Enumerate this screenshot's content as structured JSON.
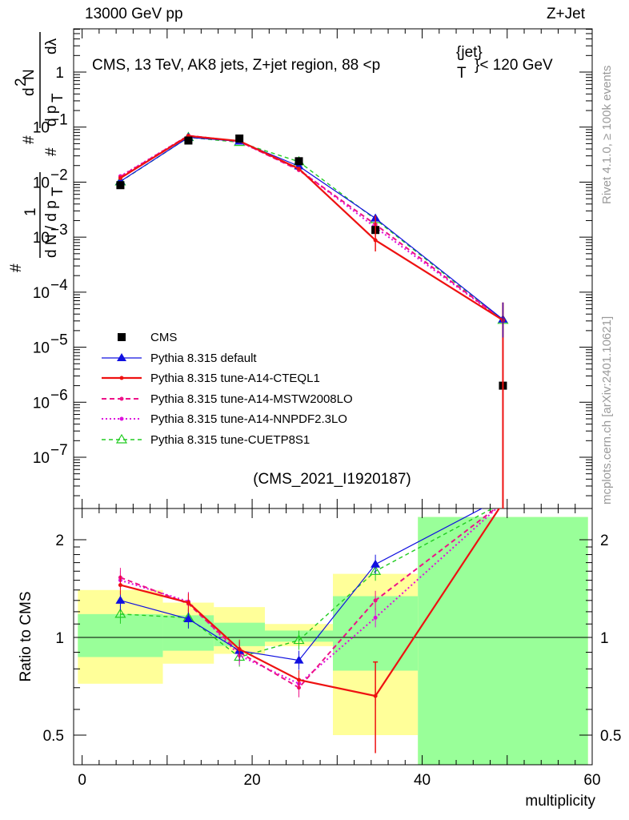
{
  "header": {
    "left": "13000 GeV pp",
    "right": "Z+Jet"
  },
  "side_labels": {
    "rivet": "Rivet 4.1.0, ≥ 100k events",
    "mcplots": "mcplots.cern.ch [arXiv:2401.10621]"
  },
  "plot_title": "CMS, 13 TeV, AK8 jets, Z+jet region, 88 <p",
  "plot_title_sup": "{jet}",
  "plot_title_sub": "T",
  "plot_title_tail": "}< 120 GeV",
  "analysis_id": "(CMS_2021_I1920187)",
  "y_axis_label": "1/dN/dpT # d²N / # dpT dλ",
  "ratio_ylabel": "Ratio to CMS",
  "x_axis_label": "multiplicity",
  "colors": {
    "data": "#000000",
    "default": "#1010e0",
    "cteql1": "#ee1111",
    "mstw": "#ee1188",
    "nnpdf": "#dd11dd",
    "cuetp8s1": "#22cc22",
    "band_yellow": "#ffff99",
    "band_green": "#99ff99"
  },
  "chart_data": [
    {
      "type": "scatter",
      "title": "CMS, 13 TeV, AK8 jets, Z+jet region, 88 < pT(jet) < 120 GeV",
      "xlabel": "multiplicity",
      "ylabel": "1/dN/dpT  d2N/dpT dlambda",
      "yscale": "log",
      "xlim": [
        -1,
        60
      ],
      "ylim": [
        1e-08,
        20
      ],
      "y_ticks": [
        "1",
        "10^-1",
        "10^-2",
        "10^-3",
        "10^-4",
        "10^-5",
        "10^-6",
        "10^-7"
      ],
      "legend_position": "middle-left",
      "x_bins": [
        4.5,
        12.5,
        18.5,
        25.5,
        34.5,
        49.5
      ],
      "series": [
        {
          "name": "CMS",
          "key": "data",
          "values": [
            0.0088,
            0.057,
            0.062,
            0.024,
            0.00135,
            2e-06
          ]
        },
        {
          "name": "Pythia 8.315 default",
          "key": "default",
          "values": [
            0.0103,
            0.065,
            0.055,
            0.0195,
            0.0022,
            3.2e-05
          ]
        },
        {
          "name": "Pythia 8.315 tune-A14-CTEQL1",
          "key": "cteql1",
          "values": [
            0.0118,
            0.069,
            0.056,
            0.0175,
            0.00088,
            3.1e-05
          ]
        },
        {
          "name": "Pythia 8.315 tune-A14-MSTW2008LO",
          "key": "mstw",
          "values": [
            0.0125,
            0.07,
            0.055,
            0.0165,
            0.0017,
            3.1e-05
          ]
        },
        {
          "name": "Pythia 8.315 tune-A14-NNPDF2.3LO",
          "key": "nnpdf",
          "values": [
            0.0128,
            0.07,
            0.054,
            0.017,
            0.0015,
            3.1e-05
          ]
        },
        {
          "name": "Pythia 8.315 tune-CUETP8S1",
          "key": "cuetp8s1",
          "values": [
            0.0102,
            0.065,
            0.053,
            0.0235,
            0.0021,
            3.1e-05
          ]
        }
      ]
    },
    {
      "type": "line",
      "ylabel": "Ratio to CMS",
      "xlabel": "multiplicity",
      "yscale": "log",
      "xlim": [
        -1,
        60
      ],
      "ylim": [
        0.4,
        2.35
      ],
      "y_ticks": [
        "0.5",
        "1",
        "2"
      ],
      "x_ticks": [
        "0",
        "20",
        "40",
        "60"
      ],
      "x_bins": [
        4.5,
        12.5,
        18.5,
        25.5,
        34.5,
        49.5
      ],
      "uncertainty_bands": [
        {
          "x": [
            -0.5,
            9.5
          ],
          "yellow": [
            0.72,
            1.4
          ],
          "green": [
            0.87,
            1.18
          ]
        },
        {
          "x": [
            9.5,
            15.5
          ],
          "yellow": [
            0.83,
            1.28
          ],
          "green": [
            0.91,
            1.17
          ]
        },
        {
          "x": [
            15.5,
            21.5
          ],
          "yellow": [
            0.89,
            1.24
          ],
          "green": [
            0.94,
            1.11
          ]
        },
        {
          "x": [
            21.5,
            29.5
          ],
          "yellow": [
            0.94,
            1.1
          ],
          "green": [
            0.97,
            1.05
          ]
        },
        {
          "x": [
            29.5,
            39.5
          ],
          "yellow": [
            0.5,
            1.57
          ],
          "green": [
            0.79,
            1.34
          ]
        },
        {
          "x": [
            39.5,
            59.5
          ],
          "yellow": [
            0.4,
            2.35
          ],
          "green": [
            0.4,
            2.35
          ]
        }
      ],
      "series": [
        {
          "name": "Pythia 8.315 default",
          "key": "default",
          "values": [
            1.3,
            1.14,
            0.91,
            0.85,
            1.68,
            2.7
          ]
        },
        {
          "name": "Pythia 8.315 tune-A14-CTEQL1",
          "key": "cteql1",
          "values": [
            1.45,
            1.28,
            0.92,
            0.74,
            0.66,
            2.6
          ]
        },
        {
          "name": "Pythia 8.315 tune-A14-MSTW2008LO",
          "key": "mstw",
          "values": [
            1.53,
            1.27,
            0.9,
            0.7,
            1.3,
            2.6
          ]
        },
        {
          "name": "Pythia 8.315 tune-A14-NNPDF2.3LO",
          "key": "nnpdf",
          "values": [
            1.5,
            1.29,
            0.88,
            0.72,
            1.15,
            2.6
          ]
        },
        {
          "name": "Pythia 8.315 tune-CUETP8S1",
          "key": "cuetp8s1",
          "values": [
            1.18,
            1.15,
            0.87,
            0.98,
            1.6,
            2.6
          ]
        }
      ]
    }
  ]
}
